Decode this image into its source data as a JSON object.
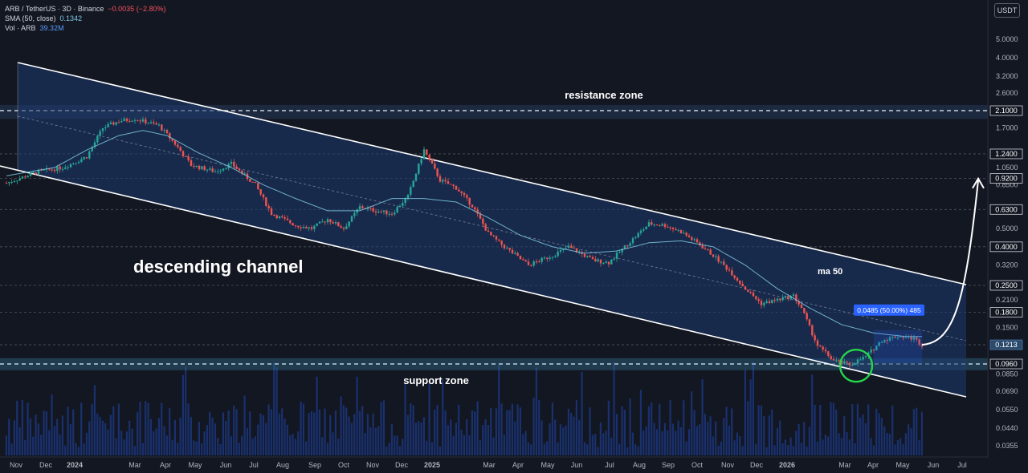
{
  "header": {
    "symbol": "ARB / TetherUS · 3D · Binance",
    "change": "−0.0035 (−2.80%)",
    "sma_label": "SMA (50, close)",
    "sma_value": "0.1342",
    "vol_label": "Vol · ARB",
    "vol_value": "39.32M",
    "currency": "USDT"
  },
  "chart_data": {
    "type": "candlestick",
    "annotations": {
      "resistance": "resistance zone",
      "support": "support zone",
      "channel": "descending channel",
      "ma": "ma 50",
      "measure": "0.0485 (50.00%) 485"
    },
    "y_scale": "log",
    "ylim": [
      0.03,
      8.0
    ],
    "y_ticks": [
      "5.0000",
      "4.0000",
      "3.2000",
      "2.6000",
      "1.7000",
      "1.0500",
      "0.8500",
      "0.5000",
      "0.3200",
      "0.2100",
      "0.1500",
      "0.1200",
      "0.0850",
      "0.0690",
      "0.0550",
      "0.0440",
      "0.0355"
    ],
    "price_tags": [
      {
        "label": "2.1000",
        "value": 2.1,
        "style": "boxed"
      },
      {
        "label": "1.2400",
        "value": 1.24,
        "style": "boxed"
      },
      {
        "label": "0.9200",
        "value": 0.92,
        "style": "boxed"
      },
      {
        "label": "0.6300",
        "value": 0.63,
        "style": "boxed"
      },
      {
        "label": "0.4000",
        "value": 0.4,
        "style": "boxed"
      },
      {
        "label": "0.2500",
        "value": 0.25,
        "style": "boxed"
      },
      {
        "label": "0.1800",
        "value": 0.18,
        "style": "boxed"
      },
      {
        "label": "0.1213",
        "value": 0.1213,
        "style": "current"
      },
      {
        "label": "0.0960",
        "value": 0.096,
        "style": "boxed"
      }
    ],
    "x_ticks": [
      "Nov",
      "Dec",
      "2024",
      "Mar",
      "Apr",
      "May",
      "Jun",
      "Jul",
      "Aug",
      "Sep",
      "Oct",
      "Nov",
      "Dec",
      "2025",
      "Mar",
      "Apr",
      "May",
      "Jun",
      "Jul",
      "Aug",
      "Sep",
      "Oct",
      "Nov",
      "Dec",
      "2026",
      "Mar",
      "Apr",
      "May",
      "Jun",
      "Jul"
    ],
    "price_path": [
      [
        0,
        0.87
      ],
      [
        4,
        1.0
      ],
      [
        7,
        1.05
      ],
      [
        10,
        1.2
      ],
      [
        12,
        1.7
      ],
      [
        14,
        1.85
      ],
      [
        16,
        1.9
      ],
      [
        19,
        1.75
      ],
      [
        21,
        1.4
      ],
      [
        23,
        1.08
      ],
      [
        26,
        1.0
      ],
      [
        28,
        1.1
      ],
      [
        31,
        0.85
      ],
      [
        33,
        0.6
      ],
      [
        36,
        0.52
      ],
      [
        38,
        0.5
      ],
      [
        40,
        0.56
      ],
      [
        42,
        0.5
      ],
      [
        44,
        0.65
      ],
      [
        46,
        0.62
      ],
      [
        48,
        0.6
      ],
      [
        50,
        0.74
      ],
      [
        52,
        1.3
      ],
      [
        54,
        0.9
      ],
      [
        56,
        0.82
      ],
      [
        58,
        0.66
      ],
      [
        60,
        0.47
      ],
      [
        62,
        0.4
      ],
      [
        65,
        0.32
      ],
      [
        68,
        0.36
      ],
      [
        70,
        0.4
      ],
      [
        73,
        0.34
      ],
      [
        75,
        0.33
      ],
      [
        77,
        0.4
      ],
      [
        80,
        0.53
      ],
      [
        82,
        0.52
      ],
      [
        84,
        0.48
      ],
      [
        86,
        0.42
      ],
      [
        88,
        0.36
      ],
      [
        90,
        0.3
      ],
      [
        92,
        0.24
      ],
      [
        94,
        0.2
      ],
      [
        96,
        0.21
      ],
      [
        98,
        0.22
      ],
      [
        99,
        0.19
      ],
      [
        100,
        0.15
      ],
      [
        101,
        0.12
      ],
      [
        103,
        0.1
      ],
      [
        105,
        0.095
      ],
      [
        107,
        0.105
      ],
      [
        109,
        0.128
      ],
      [
        111,
        0.135
      ],
      [
        113,
        0.131
      ],
      [
        114,
        0.1213
      ]
    ],
    "sma_path": [
      [
        0,
        0.95
      ],
      [
        6,
        1.05
      ],
      [
        10,
        1.3
      ],
      [
        14,
        1.55
      ],
      [
        17,
        1.65
      ],
      [
        20,
        1.55
      ],
      [
        24,
        1.25
      ],
      [
        28,
        1.05
      ],
      [
        32,
        0.85
      ],
      [
        36,
        0.72
      ],
      [
        40,
        0.62
      ],
      [
        44,
        0.62
      ],
      [
        48,
        0.72
      ],
      [
        52,
        0.72
      ],
      [
        56,
        0.69
      ],
      [
        60,
        0.57
      ],
      [
        64,
        0.46
      ],
      [
        68,
        0.4
      ],
      [
        72,
        0.37
      ],
      [
        76,
        0.38
      ],
      [
        80,
        0.42
      ],
      [
        84,
        0.43
      ],
      [
        88,
        0.4
      ],
      [
        92,
        0.32
      ],
      [
        96,
        0.24
      ],
      [
        100,
        0.19
      ],
      [
        104,
        0.155
      ],
      [
        108,
        0.14
      ],
      [
        112,
        0.134
      ],
      [
        114,
        0.1342
      ]
    ],
    "projection": [
      [
        114,
        0.1213
      ],
      [
        117,
        0.135
      ],
      [
        119,
        0.3
      ],
      [
        121,
        0.9
      ]
    ]
  }
}
